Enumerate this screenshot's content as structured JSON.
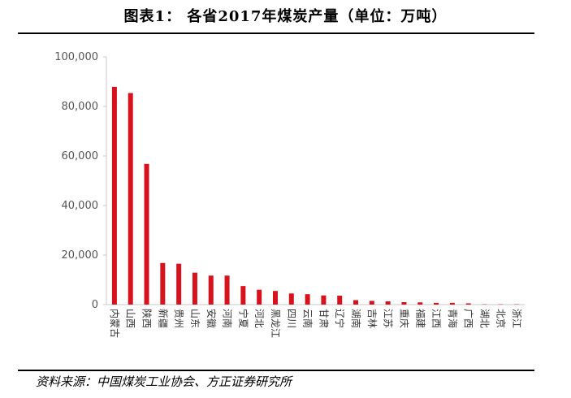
{
  "title": "图表1：  各省2017年煤炭产量（单位：万吨）",
  "source": "资料来源：中国煤炭工业协会、方正证券研究所",
  "bar_color": "#d7121d",
  "chart_data": {
    "type": "bar",
    "title": "图表1：  各省2017年煤炭产量（单位：万吨）",
    "xlabel": "",
    "ylabel": "",
    "ylim": [
      0,
      100000
    ],
    "yticks": [
      0,
      20000,
      40000,
      60000,
      80000,
      100000
    ],
    "ytick_labels": [
      "0",
      "20,000",
      "40,000",
      "60,000",
      "80,000",
      "100,000"
    ],
    "grid": false,
    "categories": [
      "内蒙古",
      "山西",
      "陕西",
      "新疆",
      "贵州",
      "山东",
      "安徽",
      "河南",
      "宁夏",
      "河北",
      "黑龙江",
      "四川",
      "云南",
      "甘肃",
      "辽宁",
      "湖南",
      "吉林",
      "江苏",
      "重庆",
      "福建",
      "江西",
      "青海",
      "广西",
      "湖北",
      "北京",
      "浙江"
    ],
    "values": [
      87900,
      85400,
      56800,
      16800,
      16500,
      12900,
      11700,
      11700,
      7500,
      6000,
      5500,
      4500,
      4200,
      3700,
      3600,
      1800,
      1500,
      1300,
      1000,
      900,
      700,
      700,
      500,
      100,
      100,
      50
    ]
  }
}
